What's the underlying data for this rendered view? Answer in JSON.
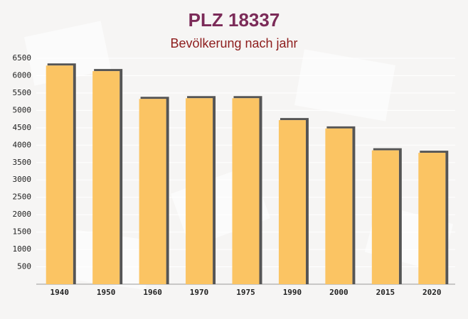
{
  "chart_data": {
    "type": "bar",
    "title": "PLZ 18337",
    "subtitle": "Bevölkerung nach jahr",
    "categories": [
      "1940",
      "1950",
      "1960",
      "1970",
      "1975",
      "1990",
      "2000",
      "2015",
      "2020"
    ],
    "values": [
      6290,
      6130,
      5330,
      5350,
      5350,
      4720,
      4480,
      3850,
      3780
    ],
    "color": "#fbc463",
    "ylim": [
      0,
      6500
    ],
    "yticks": [
      500,
      1000,
      1500,
      2000,
      2500,
      3000,
      3500,
      4000,
      4500,
      5000,
      5500,
      6000,
      6500
    ],
    "grid": true
  }
}
